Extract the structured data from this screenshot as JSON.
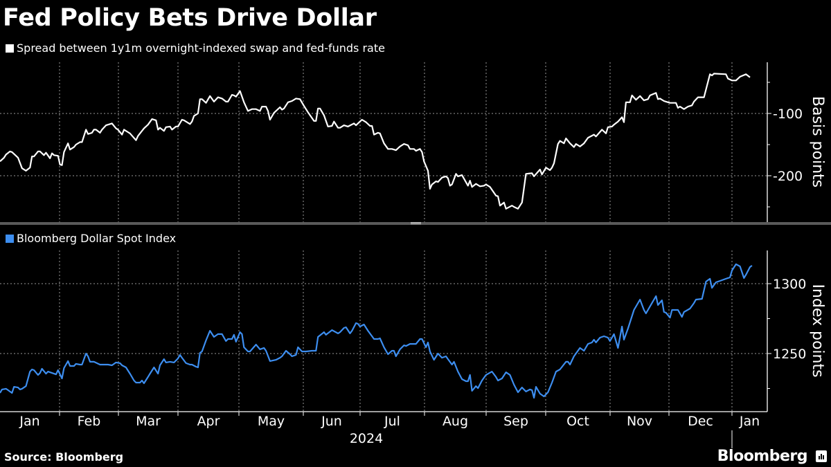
{
  "title": "Fed Policy Bets Drive Dollar",
  "source": "Source: Bloomberg",
  "brand": "Bloomberg",
  "colors": {
    "background": "#000000",
    "series_top": "#ffffff",
    "series_bottom": "#3d8ef0",
    "grid": "#9a9a9a",
    "separator": "#5a5a5a"
  },
  "chart_data": [
    {
      "type": "line",
      "title": "Fed Policy Bets Drive Dollar",
      "legend": [
        "Spread between 1y1m overnight-indexed swap and fed-funds rate"
      ],
      "xlabel": "2024",
      "ylabel": "Basis points",
      "x_unit": "days since 2024-01-01",
      "x_ticks": [
        "Jan",
        "Feb",
        "Mar",
        "Apr",
        "May",
        "Jun",
        "Jul",
        "Aug",
        "Sep",
        "Oct",
        "Nov",
        "Dec",
        "Jan"
      ],
      "y_ticks": [
        -100,
        -200
      ],
      "ylim": [
        -273,
        -18
      ],
      "grid": true,
      "series": [
        {
          "name": "Spread between 1y1m overnight-indexed swap and fed-funds rate",
          "color": "#ffffff",
          "x": [
            0,
            2,
            3,
            5,
            6,
            8,
            9,
            11,
            13,
            15,
            16,
            17,
            19,
            20,
            22,
            23,
            25,
            26,
            27,
            29,
            30,
            31,
            32,
            34,
            35,
            37,
            38,
            40,
            41,
            43,
            44,
            46,
            47,
            48,
            50,
            51,
            53,
            54,
            56,
            58,
            59,
            61,
            62,
            64,
            65,
            68,
            69,
            72,
            74,
            76,
            78,
            79,
            80,
            82,
            83,
            85,
            86,
            88,
            89,
            91,
            92,
            95,
            96,
            97,
            99,
            100,
            101,
            103,
            105,
            107,
            109,
            111,
            113,
            114,
            116,
            117,
            118,
            120,
            122,
            124,
            126,
            128,
            130,
            131,
            133,
            134,
            135,
            137,
            140,
            141,
            142,
            144,
            146,
            148,
            150,
            152,
            154,
            157,
            158,
            159,
            160,
            162,
            164,
            166,
            167,
            169,
            170,
            172,
            174,
            177,
            178,
            180,
            181,
            183,
            185,
            186,
            187,
            189,
            190,
            192,
            194,
            196,
            198,
            200,
            202,
            204,
            205,
            207,
            208,
            210,
            211,
            212,
            214,
            215,
            216,
            218,
            219,
            221,
            223,
            224,
            225,
            226,
            228,
            229,
            231,
            234,
            235,
            236,
            238,
            240,
            242,
            243,
            245,
            248,
            249,
            250,
            252,
            253,
            256,
            257,
            259,
            261,
            263,
            266,
            267,
            270,
            271,
            273,
            275,
            276,
            277,
            279,
            280,
            282,
            283,
            285,
            287,
            288,
            290,
            292,
            294,
            297,
            298,
            301,
            303,
            304,
            306,
            307,
            309,
            311,
            312,
            313,
            315,
            316,
            318,
            320,
            322,
            324,
            325,
            328,
            329,
            330,
            332,
            333,
            335,
            338,
            339,
            340,
            342,
            344,
            346,
            347,
            349,
            352,
            355,
            356,
            357,
            363,
            364,
            366,
            368,
            370,
            373,
            375
          ],
          "values": [
            -177,
            -171,
            -166,
            -161,
            -162,
            -168,
            -171,
            -188,
            -192,
            -187,
            -169,
            -169,
            -161,
            -161,
            -167,
            -163,
            -172,
            -164,
            -167,
            -168,
            -182,
            -183,
            -162,
            -148,
            -158,
            -154,
            -150,
            -146,
            -146,
            -126,
            -133,
            -131,
            -126,
            -126,
            -131,
            -126,
            -119,
            -118,
            -116,
            -124,
            -126,
            -134,
            -126,
            -130,
            -132,
            -143,
            -136,
            -124,
            -118,
            -109,
            -111,
            -126,
            -123,
            -128,
            -122,
            -121,
            -126,
            -121,
            -121,
            -110,
            -111,
            -117,
            -113,
            -104,
            -100,
            -77,
            -77,
            -83,
            -72,
            -81,
            -74,
            -76,
            -81,
            -81,
            -70,
            -71,
            -73,
            -64,
            -82,
            -96,
            -93,
            -93,
            -96,
            -89,
            -89,
            -96,
            -110,
            -99,
            -90,
            -94,
            -92,
            -82,
            -80,
            -76,
            -77,
            -88,
            -98,
            -112,
            -112,
            -92,
            -92,
            -103,
            -121,
            -120,
            -113,
            -123,
            -123,
            -119,
            -121,
            -116,
            -119,
            -113,
            -110,
            -114,
            -120,
            -120,
            -134,
            -131,
            -132,
            -148,
            -157,
            -157,
            -159,
            -153,
            -149,
            -151,
            -157,
            -157,
            -160,
            -157,
            -162,
            -177,
            -192,
            -221,
            -214,
            -209,
            -210,
            -203,
            -201,
            -204,
            -216,
            -214,
            -197,
            -201,
            -199,
            -216,
            -208,
            -218,
            -213,
            -217,
            -216,
            -214,
            -218,
            -232,
            -233,
            -248,
            -243,
            -253,
            -248,
            -250,
            -253,
            -243,
            -197,
            -196,
            -201,
            -190,
            -198,
            -187,
            -191,
            -187,
            -180,
            -149,
            -144,
            -148,
            -140,
            -148,
            -154,
            -149,
            -153,
            -148,
            -139,
            -134,
            -137,
            -126,
            -132,
            -122,
            -121,
            -118,
            -113,
            -106,
            -114,
            -82,
            -82,
            -71,
            -78,
            -72,
            -79,
            -77,
            -71,
            -67,
            -77,
            -76,
            -80,
            -81,
            -83,
            -83,
            -91,
            -89,
            -93,
            -89,
            -87,
            -81,
            -74,
            -74,
            -37,
            -39,
            -36,
            -37,
            -44,
            -47,
            -47,
            -41,
            -37,
            -42
          ]
        }
      ]
    },
    {
      "type": "line",
      "legend": [
        "Bloomberg Dollar Spot Index"
      ],
      "xlabel": "2024",
      "ylabel": "Index points",
      "x_unit": "days since 2024-01-01",
      "x_ticks": [
        "Jan",
        "Feb",
        "Mar",
        "Apr",
        "May",
        "Jun",
        "Jul",
        "Aug",
        "Sep",
        "Oct",
        "Nov",
        "Dec",
        "Jan"
      ],
      "y_ticks": [
        1250,
        1300
      ],
      "ylim": [
        1207,
        1326
      ],
      "grid": true,
      "series": [
        {
          "name": "Bloomberg Dollar Spot Index",
          "color": "#3d8ef0",
          "x": [
            0,
            1,
            3,
            4,
            6,
            7,
            9,
            10,
            11,
            13,
            15,
            16,
            17,
            19,
            20,
            21,
            23,
            24,
            26,
            28,
            29,
            31,
            32,
            34,
            35,
            37,
            38,
            40,
            41,
            43,
            44,
            45,
            47,
            50,
            51,
            54,
            56,
            58,
            60,
            61,
            63,
            65,
            67,
            68,
            70,
            71,
            72,
            74,
            75,
            77,
            79,
            80,
            82,
            83,
            85,
            87,
            89,
            90,
            91,
            93,
            95,
            96,
            98,
            99,
            100,
            101,
            103,
            105,
            107,
            109,
            111,
            113,
            114,
            116,
            117,
            118,
            120,
            121,
            122,
            124,
            125,
            128,
            130,
            132,
            133,
            135,
            138,
            140,
            141,
            143,
            145,
            146,
            148,
            149,
            151,
            153,
            156,
            158,
            159,
            162,
            163,
            166,
            169,
            170,
            172,
            173,
            175,
            176,
            178,
            179,
            180,
            182,
            184,
            187,
            189,
            190,
            192,
            194,
            196,
            197,
            198,
            200,
            202,
            203,
            205,
            207,
            208,
            210,
            211,
            213,
            214,
            215,
            217,
            219,
            221,
            223,
            224,
            226,
            227,
            229,
            231,
            233,
            234,
            235,
            236,
            238,
            239,
            241,
            243,
            246,
            248,
            249,
            251,
            253,
            255,
            257,
            259,
            261,
            263,
            265,
            266,
            267,
            268,
            270,
            272,
            274,
            276,
            278,
            280,
            283,
            284,
            285,
            287,
            290,
            292,
            294,
            296,
            297,
            298,
            300,
            302,
            304,
            305,
            307,
            309,
            311,
            312,
            314,
            317,
            320,
            322,
            323,
            325,
            328,
            329,
            331,
            332,
            333,
            335,
            336,
            339,
            341,
            342,
            345,
            347,
            348,
            351,
            353,
            355,
            356,
            358,
            360,
            363,
            365,
            366,
            368,
            370,
            372,
            373,
            375,
            376
          ],
          "values": [
            1221.8,
            1224.3,
            1224.8,
            1223.8,
            1221.8,
            1226.2,
            1225.7,
            1224.3,
            1224.8,
            1226.7,
            1237.1,
            1238.6,
            1238.1,
            1234.7,
            1236.1,
            1239.1,
            1235.6,
            1237.1,
            1236.1,
            1235.1,
            1238.1,
            1232.2,
            1239.6,
            1244.6,
            1241.1,
            1241.1,
            1242.6,
            1242.1,
            1242.1,
            1250.0,
            1248.0,
            1244.1,
            1244.1,
            1242.1,
            1242.1,
            1242.1,
            1241.6,
            1243.6,
            1243.1,
            1241.6,
            1240.1,
            1235.6,
            1230.7,
            1229.2,
            1229.2,
            1230.7,
            1228.7,
            1233.2,
            1235.6,
            1240.1,
            1235.6,
            1241.6,
            1246.0,
            1243.6,
            1244.1,
            1243.6,
            1246.5,
            1249.0,
            1247.0,
            1243.1,
            1242.1,
            1242.1,
            1240.6,
            1240.1,
            1250.5,
            1251.5,
            1259.4,
            1266.3,
            1261.9,
            1263.9,
            1263.9,
            1258.9,
            1260.4,
            1260.4,
            1263.4,
            1258.4,
            1265.3,
            1263.9,
            1254.5,
            1251.5,
            1251.5,
            1256.4,
            1253.0,
            1254.0,
            1252.0,
            1244.6,
            1245.5,
            1247.0,
            1248.0,
            1252.0,
            1249.5,
            1248.0,
            1249.0,
            1254.5,
            1251.5,
            1251.5,
            1252.0,
            1252.0,
            1261.9,
            1265.3,
            1263.4,
            1266.8,
            1264.4,
            1265.3,
            1268.3,
            1268.8,
            1264.4,
            1266.3,
            1271.8,
            1271.3,
            1269.3,
            1270.8,
            1266.3,
            1260.4,
            1260.4,
            1260.9,
            1254.5,
            1249.5,
            1252.0,
            1252.0,
            1248.0,
            1253.0,
            1255.9,
            1255.4,
            1256.9,
            1256.9,
            1256.9,
            1260.4,
            1260.4,
            1254.5,
            1257.9,
            1251.5,
            1245.5,
            1250.0,
            1247.0,
            1248.0,
            1246.0,
            1242.1,
            1244.1,
            1237.1,
            1231.7,
            1230.2,
            1230.2,
            1234.7,
            1223.3,
            1226.7,
            1225.2,
            1230.7,
            1234.7,
            1237.1,
            1233.2,
            1230.7,
            1232.2,
            1236.6,
            1234.7,
            1227.7,
            1222.3,
            1225.7,
            1222.8,
            1224.3,
            1223.8,
            1218.3,
            1226.2,
            1221.3,
            1219.3,
            1222.3,
            1229.2,
            1237.1,
            1238.6,
            1244.1,
            1244.1,
            1242.1,
            1248.0,
            1254.0,
            1252.0,
            1256.9,
            1257.9,
            1259.9,
            1257.9,
            1261.4,
            1262.4,
            1261.4,
            1258.9,
            1263.9,
            1254.0,
            1269.3,
            1259.9,
            1267.8,
            1281.2,
            1288.6,
            1281.2,
            1278.7,
            1283.7,
            1291.1,
            1284.7,
            1288.1,
            1279.7,
            1279.2,
            1275.7,
            1281.2,
            1281.2,
            1276.2,
            1279.7,
            1282.2,
            1286.1,
            1288.6,
            1289.1,
            1301.5,
            1303.5,
            1297.0,
            1301.0,
            1302.0,
            1303.5,
            1304.5,
            1309.4,
            1313.9,
            1312.4,
            1304.0,
            1306.4,
            1311.9,
            1312.9
          ]
        }
      ]
    }
  ],
  "top_panel": {
    "legend": "Spread between 1y1m overnight-indexed swap and fed-funds rate",
    "y_axis_label": "Basis points",
    "y_tick_labels": [
      "-100",
      "-200"
    ]
  },
  "bottom_panel": {
    "legend": "Bloomberg Dollar Spot Index",
    "y_axis_label": "Index points",
    "y_tick_labels": [
      "1300",
      "1250"
    ]
  },
  "x_axis": {
    "months": [
      "Jan",
      "Feb",
      "Mar",
      "Apr",
      "May",
      "Jun",
      "Jul",
      "Aug",
      "Sep",
      "Oct",
      "Nov",
      "Dec",
      "Jan"
    ],
    "year": "2024"
  }
}
